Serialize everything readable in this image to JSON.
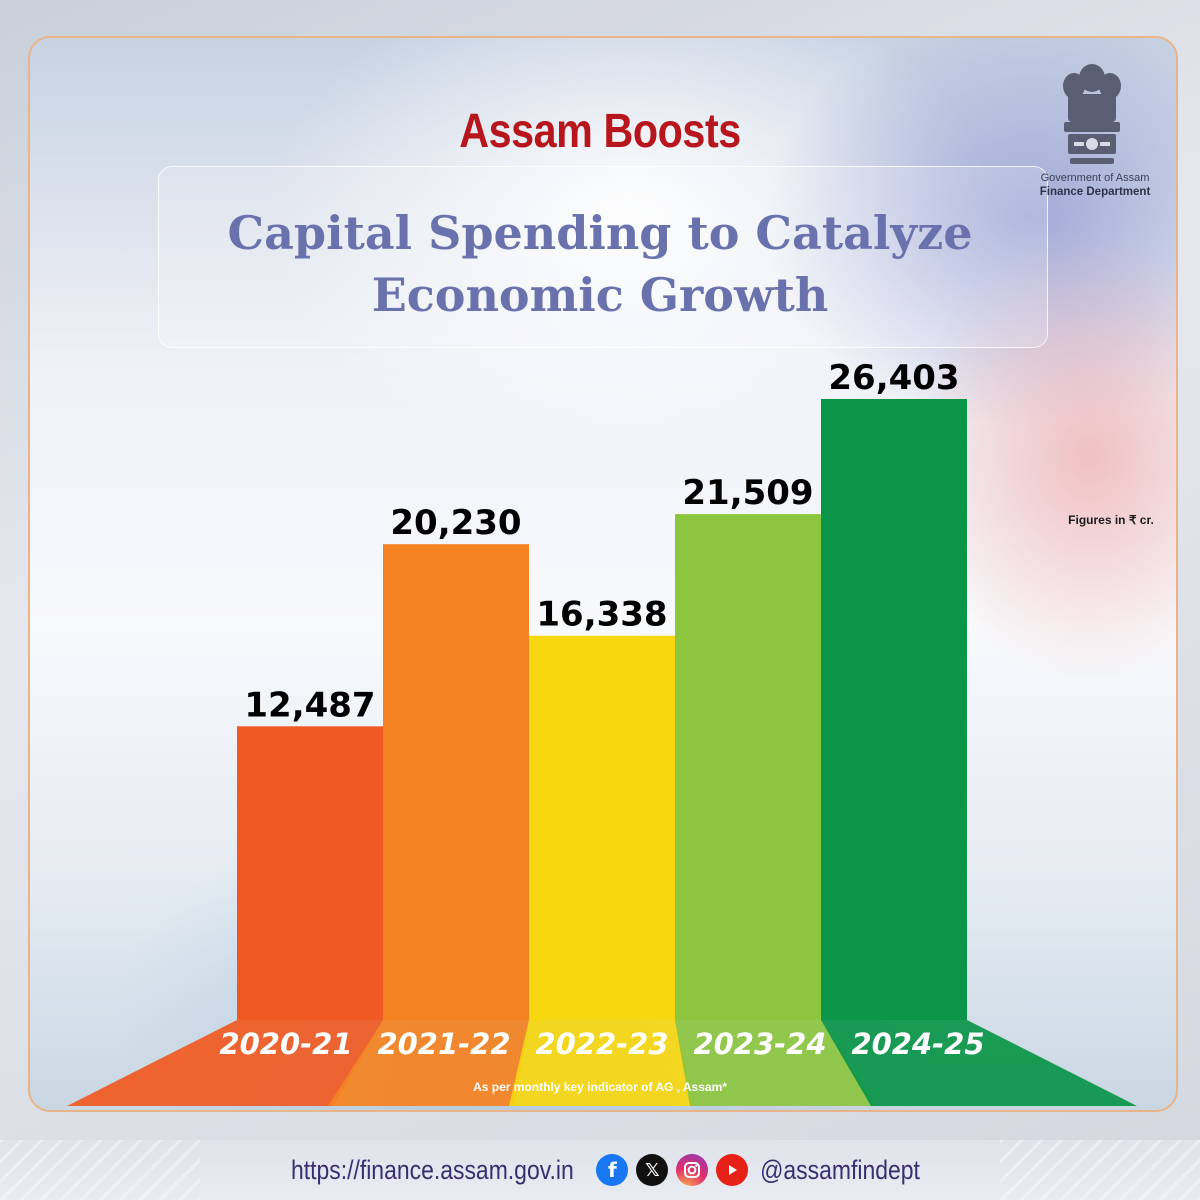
{
  "header": {
    "title_line1": "Assam Boosts",
    "title_line2": "Capital Spending to Catalyze",
    "title_line3": "Economic Growth"
  },
  "org": {
    "emblem_icon": "state-emblem-icon",
    "line1": "Government of Assam",
    "line2": "Finance Department"
  },
  "units_note": "Figures in ₹ cr.",
  "source_note": "As per monthly key indicator of AG , Assam*",
  "chart_data": {
    "type": "bar",
    "title": "Capital Spending to Catalyze Economic Growth",
    "categories": [
      "2020-21",
      "2021-22",
      "2022-23",
      "2023-24",
      "2024-25"
    ],
    "value_labels": [
      "12,487",
      "20,230",
      "16,338",
      "21,509",
      "26,403"
    ],
    "values": [
      12487,
      20230,
      16338,
      21509,
      26403
    ],
    "colors": [
      "#f05a22",
      "#f58220",
      "#f7d70f",
      "#8cc63f",
      "#0a9548"
    ],
    "ylim": [
      0,
      26403
    ],
    "units": "₹ cr.",
    "grid": false,
    "legend": "none"
  },
  "footer": {
    "url": "https://finance.assam.gov.in",
    "handle": "@assamfindept",
    "icons": [
      "facebook-icon",
      "x-icon",
      "instagram-icon",
      "youtube-icon"
    ]
  }
}
